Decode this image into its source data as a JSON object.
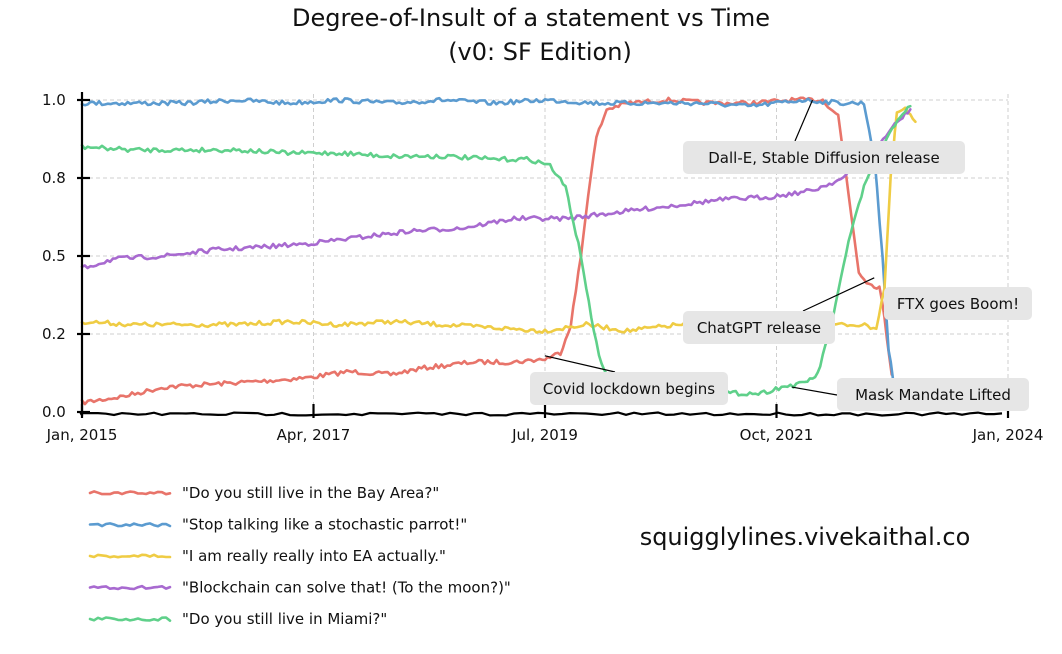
{
  "chart_data": {
    "type": "line",
    "title": "Degree-of-Insult of a statement vs Time",
    "subtitle": "(v0: SF Edition)",
    "xlabel": "",
    "ylabel": "",
    "xlim": [
      2015.0,
      2024.0
    ],
    "ylim": [
      0.0,
      1.0
    ],
    "x_ticks": [
      {
        "value": 2015.0,
        "label": "Jan, 2015"
      },
      {
        "value": 2017.25,
        "label": "Apr, 2017"
      },
      {
        "value": 2019.5,
        "label": "Jul, 2019"
      },
      {
        "value": 2021.75,
        "label": "Oct, 2021"
      },
      {
        "value": 2024.0,
        "label": "Jan, 2024"
      }
    ],
    "y_ticks": [
      {
        "value": 0.0,
        "label": "0.0"
      },
      {
        "value": 0.25,
        "label": "0.2"
      },
      {
        "value": 0.5,
        "label": "0.5"
      },
      {
        "value": 0.75,
        "label": "0.8"
      },
      {
        "value": 1.0,
        "label": "1.0"
      }
    ],
    "grid": true,
    "legend_position": "bottom-left",
    "series": [
      {
        "name": "\"Do you still live in the Bay Area?\"",
        "color": "#e8746a",
        "points": [
          [
            2015.0,
            0.03
          ],
          [
            2015.4,
            0.05
          ],
          [
            2015.8,
            0.08
          ],
          [
            2016.3,
            0.09
          ],
          [
            2016.8,
            0.1
          ],
          [
            2017.2,
            0.11
          ],
          [
            2017.6,
            0.13
          ],
          [
            2018.0,
            0.12
          ],
          [
            2018.3,
            0.14
          ],
          [
            2018.8,
            0.16
          ],
          [
            2019.2,
            0.16
          ],
          [
            2019.5,
            0.17
          ],
          [
            2019.65,
            0.19
          ],
          [
            2019.75,
            0.28
          ],
          [
            2019.85,
            0.5
          ],
          [
            2019.92,
            0.7
          ],
          [
            2020.0,
            0.88
          ],
          [
            2020.1,
            0.97
          ],
          [
            2020.3,
            0.99
          ],
          [
            2020.7,
            1.0
          ],
          [
            2021.1,
            0.99
          ],
          [
            2021.5,
            0.99
          ],
          [
            2021.9,
            1.0
          ],
          [
            2022.2,
            1.0
          ],
          [
            2022.35,
            0.95
          ],
          [
            2022.45,
            0.7
          ],
          [
            2022.55,
            0.45
          ],
          [
            2022.65,
            0.41
          ],
          [
            2022.75,
            0.4
          ],
          [
            2022.8,
            0.3
          ],
          [
            2022.87,
            0.12
          ]
        ]
      },
      {
        "name": "\"Stop talking like a stochastic parrot!\"",
        "color": "#5b9bd0",
        "points": [
          [
            2015.0,
            0.99
          ],
          [
            2015.5,
            0.99
          ],
          [
            2016.0,
            0.99
          ],
          [
            2016.5,
            1.0
          ],
          [
            2017.0,
            0.99
          ],
          [
            2017.5,
            1.0
          ],
          [
            2018.0,
            0.99
          ],
          [
            2018.5,
            1.0
          ],
          [
            2019.0,
            0.99
          ],
          [
            2019.5,
            1.0
          ],
          [
            2020.0,
            0.99
          ],
          [
            2020.5,
            0.99
          ],
          [
            2021.0,
            0.99
          ],
          [
            2021.5,
            0.98
          ],
          [
            2022.0,
            1.0
          ],
          [
            2022.4,
            0.99
          ],
          [
            2022.6,
            0.99
          ],
          [
            2022.7,
            0.82
          ],
          [
            2022.78,
            0.5
          ],
          [
            2022.84,
            0.2
          ],
          [
            2022.88,
            0.11
          ]
        ]
      },
      {
        "name": "\"I am really really into EA actually.\"",
        "color": "#efcc44",
        "points": [
          [
            2015.0,
            0.29
          ],
          [
            2015.5,
            0.28
          ],
          [
            2016.0,
            0.28
          ],
          [
            2016.5,
            0.28
          ],
          [
            2017.0,
            0.29
          ],
          [
            2017.5,
            0.28
          ],
          [
            2018.0,
            0.29
          ],
          [
            2018.5,
            0.28
          ],
          [
            2019.0,
            0.27
          ],
          [
            2019.5,
            0.26
          ],
          [
            2019.9,
            0.28
          ],
          [
            2020.3,
            0.26
          ],
          [
            2020.8,
            0.28
          ],
          [
            2021.2,
            0.29
          ],
          [
            2021.8,
            0.29
          ],
          [
            2022.3,
            0.28
          ],
          [
            2022.55,
            0.28
          ],
          [
            2022.72,
            0.27
          ],
          [
            2022.8,
            0.4
          ],
          [
            2022.86,
            0.75
          ],
          [
            2022.92,
            0.96
          ],
          [
            2023.0,
            0.97
          ],
          [
            2023.1,
            0.93
          ]
        ]
      },
      {
        "name": "\"Blockchain can solve that! (To the moon?)\"",
        "color": "#a86ad0",
        "points": [
          [
            2015.0,
            0.46
          ],
          [
            2015.3,
            0.49
          ],
          [
            2015.8,
            0.5
          ],
          [
            2016.3,
            0.52
          ],
          [
            2016.8,
            0.53
          ],
          [
            2017.2,
            0.54
          ],
          [
            2017.7,
            0.56
          ],
          [
            2018.2,
            0.58
          ],
          [
            2018.7,
            0.59
          ],
          [
            2019.2,
            0.62
          ],
          [
            2019.7,
            0.62
          ],
          [
            2020.2,
            0.64
          ],
          [
            2020.7,
            0.66
          ],
          [
            2021.2,
            0.68
          ],
          [
            2021.7,
            0.69
          ],
          [
            2022.1,
            0.71
          ],
          [
            2022.4,
            0.75
          ],
          [
            2022.7,
            0.84
          ],
          [
            2022.9,
            0.92
          ],
          [
            2023.05,
            0.97
          ]
        ]
      },
      {
        "name": "\"Do you still live in Miami?\"",
        "color": "#5fd08a",
        "points": [
          [
            2015.0,
            0.85
          ],
          [
            2015.5,
            0.84
          ],
          [
            2016.0,
            0.84
          ],
          [
            2016.5,
            0.84
          ],
          [
            2017.0,
            0.83
          ],
          [
            2017.5,
            0.83
          ],
          [
            2018.0,
            0.82
          ],
          [
            2018.5,
            0.82
          ],
          [
            2019.0,
            0.81
          ],
          [
            2019.35,
            0.81
          ],
          [
            2019.55,
            0.79
          ],
          [
            2019.7,
            0.72
          ],
          [
            2019.85,
            0.5
          ],
          [
            2019.95,
            0.3
          ],
          [
            2020.05,
            0.15
          ],
          [
            2020.15,
            0.08
          ],
          [
            2020.5,
            0.07
          ],
          [
            2020.9,
            0.07
          ],
          [
            2021.3,
            0.06
          ],
          [
            2021.6,
            0.06
          ],
          [
            2021.8,
            0.08
          ],
          [
            2022.0,
            0.09
          ],
          [
            2022.15,
            0.12
          ],
          [
            2022.3,
            0.3
          ],
          [
            2022.45,
            0.55
          ],
          [
            2022.6,
            0.72
          ],
          [
            2022.8,
            0.86
          ],
          [
            2022.95,
            0.95
          ],
          [
            2023.05,
            0.98
          ]
        ]
      }
    ],
    "annotations": [
      {
        "text": "Dall-E, Stable Diffusion release",
        "x": 2022.1,
        "y": 1.0
      },
      {
        "text": "ChatGPT release",
        "x": 2022.7,
        "y": 0.43
      },
      {
        "text": "FTX goes Boom!",
        "x": 2022.9,
        "y": 0.33
      },
      {
        "text": "Covid lockdown begins",
        "x": 2019.5,
        "y": 0.18
      },
      {
        "text": "Mask Mandate Lifted",
        "x": 2021.9,
        "y": 0.08
      }
    ]
  },
  "watermark": "squigglylines.vivekaithal.co"
}
